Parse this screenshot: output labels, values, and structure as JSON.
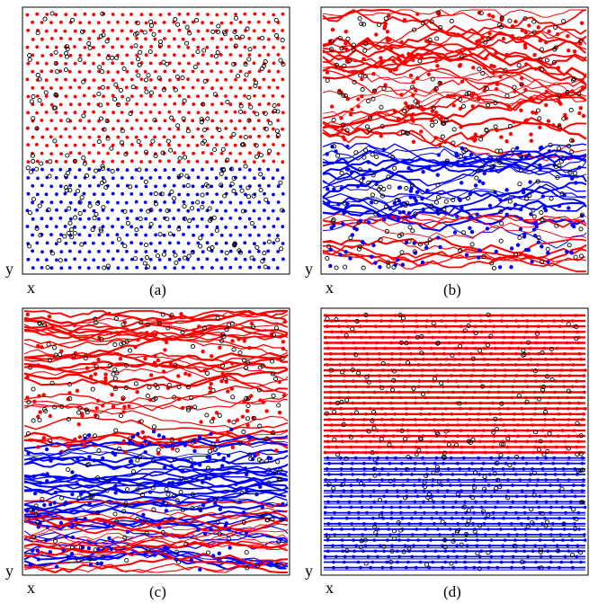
{
  "panels": [
    {
      "caption": "(a)",
      "xlabel": "x",
      "ylabel": "y",
      "state": "pinned-lattice"
    },
    {
      "caption": "(b)",
      "xlabel": "x",
      "ylabel": "y",
      "state": "plastic-channels"
    },
    {
      "caption": "(c)",
      "xlabel": "x",
      "ylabel": "y",
      "state": "fluctuating-flow"
    },
    {
      "caption": "(d)",
      "xlabel": "x",
      "ylabel": "y",
      "state": "moving-smectic"
    }
  ],
  "colors": {
    "species_1": "#ff0000",
    "species_2": "#0000ff",
    "pinning_sites": "#000000",
    "frame": "#000000"
  }
}
